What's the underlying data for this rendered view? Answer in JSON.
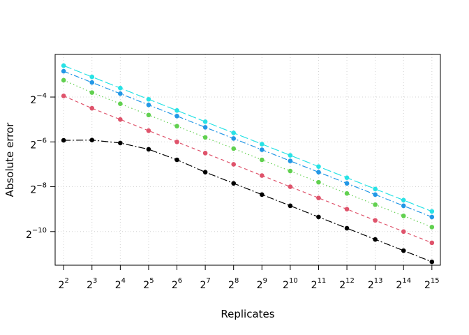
{
  "chart_data": {
    "type": "line",
    "title": "",
    "xlabel": "Replicates",
    "ylabel": "Absolute error",
    "x_scale": "log2",
    "y_scale": "log2",
    "x": [
      4,
      8,
      16,
      32,
      64,
      128,
      256,
      512,
      1024,
      2048,
      4096,
      8192,
      16384,
      32768
    ],
    "x_tick_labels": [
      {
        "base": "2",
        "exp": "2"
      },
      {
        "base": "2",
        "exp": "3"
      },
      {
        "base": "2",
        "exp": "4"
      },
      {
        "base": "2",
        "exp": "5"
      },
      {
        "base": "2",
        "exp": "6"
      },
      {
        "base": "2",
        "exp": "7"
      },
      {
        "base": "2",
        "exp": "8"
      },
      {
        "base": "2",
        "exp": "9"
      },
      {
        "base": "2",
        "exp": "10"
      },
      {
        "base": "2",
        "exp": "11"
      },
      {
        "base": "2",
        "exp": "12"
      },
      {
        "base": "2",
        "exp": "13"
      },
      {
        "base": "2",
        "exp": "14"
      },
      {
        "base": "2",
        "exp": "15"
      }
    ],
    "y_ticks": [
      0.0625,
      0.015625,
      0.00390625,
      0.0009765625
    ],
    "y_tick_labels": [
      {
        "base": "2",
        "exp": "−4"
      },
      {
        "base": "2",
        "exp": "−6"
      },
      {
        "base": "2",
        "exp": "−8"
      },
      {
        "base": "2",
        "exp": "−10"
      }
    ],
    "x_log2_range": [
      1.7,
      15.3
    ],
    "y_log2_range": [
      -11.5,
      -2.1
    ],
    "grid": true,
    "series": [
      {
        "color": "#000000",
        "dash": "10,3,2,3",
        "y_log2": [
          -5.93,
          -5.92,
          -6.05,
          -6.33,
          -6.8,
          -7.35,
          -7.85,
          -8.35,
          -8.85,
          -9.35,
          -9.85,
          -10.35,
          -10.85,
          -11.35
        ]
      },
      {
        "color": "#DF536B",
        "dash": "5,4",
        "y_log2": [
          -3.95,
          -4.5,
          -5.0,
          -5.5,
          -6.0,
          -6.5,
          -7.0,
          -7.5,
          -8.0,
          -8.5,
          -9.0,
          -9.5,
          -10.0,
          -10.5
        ]
      },
      {
        "color": "#61D04F",
        "dash": "1.5,3.5",
        "y_log2": [
          -3.25,
          -3.8,
          -4.3,
          -4.8,
          -5.3,
          -5.8,
          -6.3,
          -6.8,
          -7.3,
          -7.8,
          -8.3,
          -8.8,
          -9.3,
          -9.8
        ]
      },
      {
        "color": "#2297E6",
        "dash": "8,3,2,3",
        "y_log2": [
          -2.85,
          -3.35,
          -3.85,
          -4.35,
          -4.85,
          -5.35,
          -5.85,
          -6.35,
          -6.85,
          -7.35,
          -7.85,
          -8.35,
          -8.85,
          -9.35
        ]
      },
      {
        "color": "#28E2E5",
        "dash": "12,4",
        "y_log2": [
          -2.6,
          -3.1,
          -3.6,
          -4.1,
          -4.6,
          -5.1,
          -5.6,
          -6.1,
          -6.6,
          -7.1,
          -7.6,
          -8.1,
          -8.6,
          -9.1
        ]
      }
    ]
  }
}
